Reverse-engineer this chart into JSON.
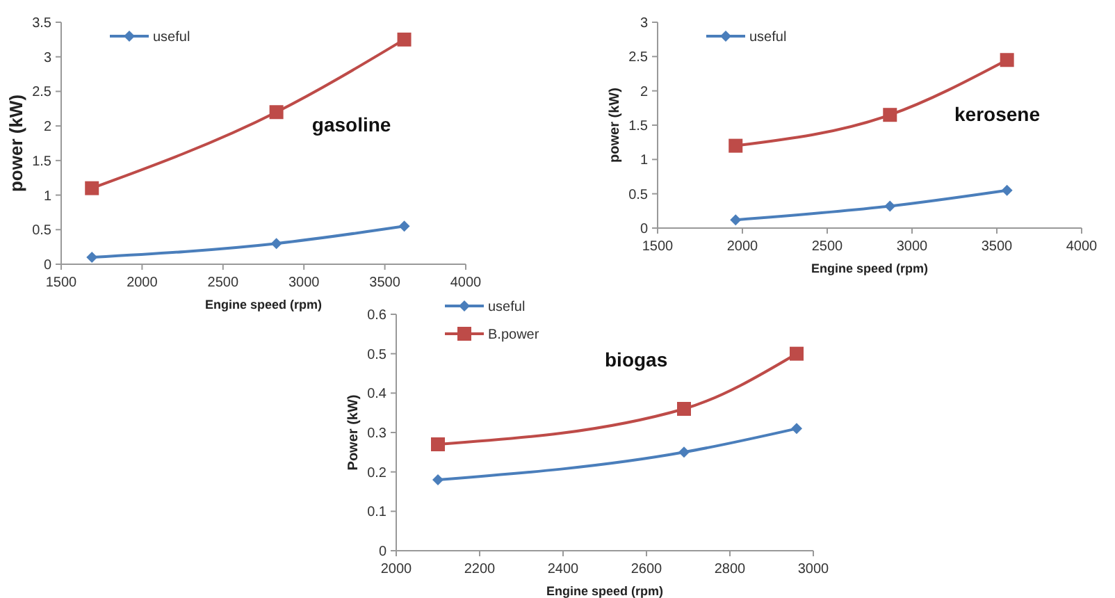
{
  "chart_data": [
    {
      "type": "line",
      "x": [
        1690,
        2830,
        3620
      ],
      "xlabel": "Engine speed (rpm)",
      "ylabel": "power (kW)",
      "annotations": [
        "gasoline"
      ],
      "xlim": [
        1500,
        4000
      ],
      "xticks": [
        1500,
        2000,
        2500,
        3000,
        3500,
        4000
      ],
      "ylim": [
        0,
        3.5
      ],
      "yticks": [
        0,
        0.5,
        1,
        1.5,
        2,
        2.5,
        3,
        3.5
      ],
      "grid": false,
      "legend": "top left",
      "series": [
        {
          "name": "useful",
          "color": "#4a7ebb",
          "values": [
            0.1,
            0.3,
            0.55
          ],
          "marker": "diamond"
        },
        {
          "color": "#be4b48",
          "values": [
            1.1,
            2.2,
            3.25
          ],
          "marker": "square"
        }
      ]
    },
    {
      "type": "line",
      "x": [
        1960,
        2870,
        3560
      ],
      "xlabel": "Engine speed (rpm)",
      "ylabel": "power (kW)",
      "annotations": [
        "kerosene"
      ],
      "xlim": [
        1500,
        4000
      ],
      "xticks": [
        1500,
        2000,
        2500,
        3000,
        3500,
        4000
      ],
      "ylim": [
        0,
        3
      ],
      "yticks": [
        0,
        0.5,
        1,
        1.5,
        2,
        2.5,
        3
      ],
      "grid": false,
      "legend": "top left",
      "series": [
        {
          "name": "useful",
          "color": "#4a7ebb",
          "values": [
            0.12,
            0.32,
            0.55
          ],
          "marker": "diamond"
        },
        {
          "color": "#be4b48",
          "values": [
            1.2,
            1.65,
            2.45
          ],
          "marker": "square"
        }
      ]
    },
    {
      "type": "line",
      "x": [
        2100,
        2690,
        2960
      ],
      "xlabel": "Engine speed (rpm)",
      "ylabel": "Power (kW)",
      "annotations": [
        "biogas"
      ],
      "xlim": [
        2000,
        3000
      ],
      "xticks": [
        2000,
        2200,
        2400,
        2600,
        2800,
        3000
      ],
      "ylim": [
        0,
        0.6
      ],
      "yticks": [
        0,
        0.1,
        0.2,
        0.3,
        0.4,
        0.5,
        0.6
      ],
      "grid": false,
      "legend": "top left",
      "series": [
        {
          "name": "useful",
          "color": "#4a7ebb",
          "values": [
            0.18,
            0.25,
            0.31
          ],
          "marker": "diamond"
        },
        {
          "name": "B.power",
          "color": "#be4b48",
          "values": [
            0.27,
            0.36,
            0.5
          ],
          "marker": "square"
        }
      ]
    }
  ]
}
